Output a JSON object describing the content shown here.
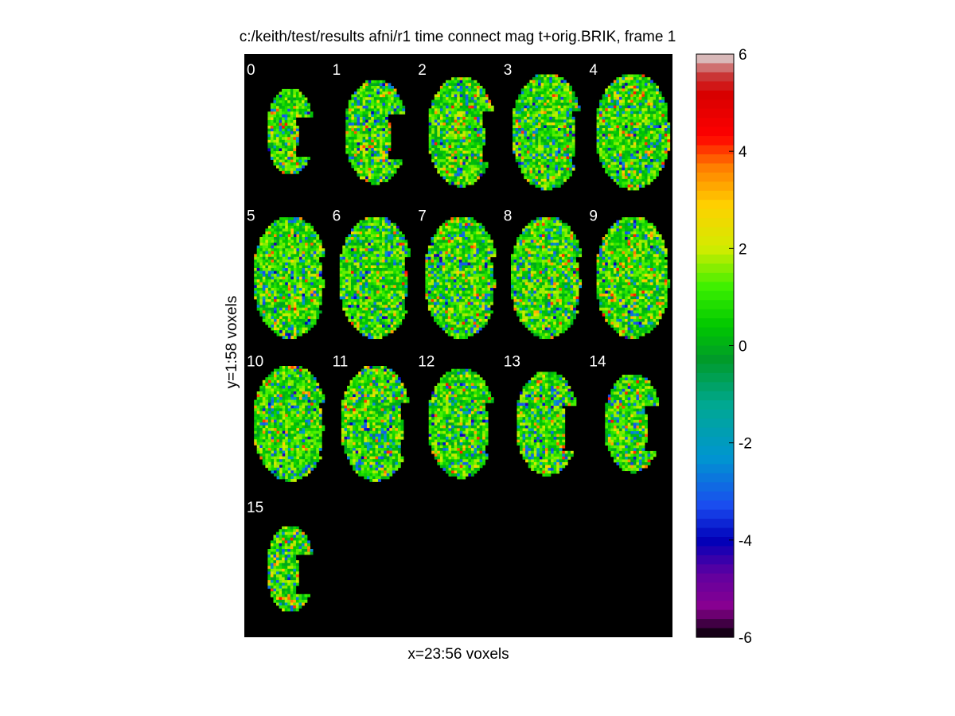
{
  "chart_data": {
    "type": "heatmap",
    "title": "c:/keith/test/results afni/r1 time connect mag t+orig.BRIK, frame 1",
    "xlabel": "x=23:56 voxels",
    "ylabel": "y=1:58 voxels",
    "x_range": [
      23,
      56
    ],
    "y_range": [
      1,
      58
    ],
    "background": "#000000",
    "panel_labels": [
      "0",
      "1",
      "2",
      "3",
      "4",
      "5",
      "6",
      "7",
      "8",
      "9",
      "10",
      "11",
      "12",
      "13",
      "14",
      "15"
    ],
    "colorbar": {
      "ticks": [
        6,
        4,
        2,
        0,
        -2,
        -4,
        -6
      ],
      "clim": [
        -6,
        6
      ],
      "stops": [
        {
          "value": 6,
          "color": "#dedede"
        },
        {
          "value": 5.6,
          "color": "#c84040"
        },
        {
          "value": 5.2,
          "color": "#d60000"
        },
        {
          "value": 4.3,
          "color": "#ff0000"
        },
        {
          "value": 3.7,
          "color": "#ff7a00"
        },
        {
          "value": 2.9,
          "color": "#ffd000"
        },
        {
          "value": 2.0,
          "color": "#d2ec00"
        },
        {
          "value": 1.2,
          "color": "#3cf000"
        },
        {
          "value": 0.4,
          "color": "#00c800"
        },
        {
          "value": -0.3,
          "color": "#009a2a"
        },
        {
          "value": -1.2,
          "color": "#00a890"
        },
        {
          "value": -2.3,
          "color": "#0096d0"
        },
        {
          "value": -3.3,
          "color": "#1a4cf0"
        },
        {
          "value": -4.0,
          "color": "#0000b8"
        },
        {
          "value": -4.7,
          "color": "#6000a0"
        },
        {
          "value": -5.4,
          "color": "#8a0090"
        },
        {
          "value": -6,
          "color": "#000000"
        }
      ]
    }
  }
}
